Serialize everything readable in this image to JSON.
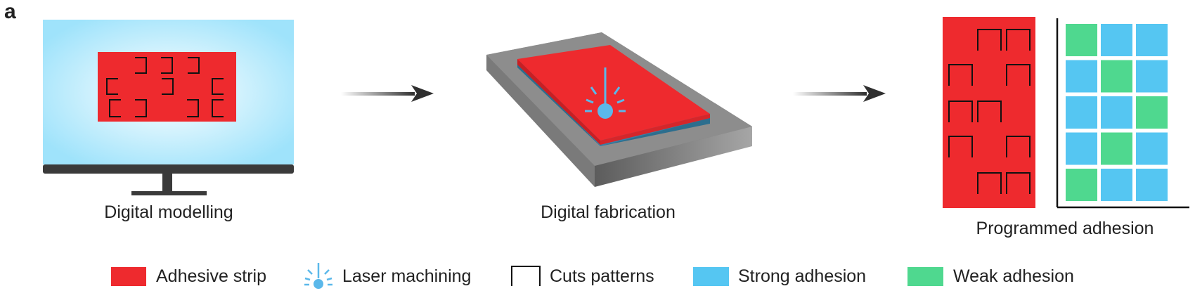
{
  "panel_letter": "a",
  "stages": {
    "modelling": "Digital modelling",
    "fabrication": "Digital fabrication",
    "programmed": "Programmed adhesion"
  },
  "legend": {
    "adhesive_strip": "Adhesive strip",
    "laser_machining": "Laser machining",
    "cuts_patterns": "Cuts patterns",
    "strong_adhesion": "Strong adhesion",
    "weak_adhesion": "Weak adhesion"
  },
  "colors": {
    "adhesive": "#ee2a2e",
    "laser": "#5bb8ea",
    "strong": "#55c6f2",
    "weak": "#4fd88f",
    "screen": "#9fe3fb",
    "frame": "#3a3a3a"
  },
  "adhesion_grid": [
    [
      "weak",
      "strong",
      "strong"
    ],
    [
      "strong",
      "weak",
      "strong"
    ],
    [
      "strong",
      "strong",
      "weak"
    ],
    [
      "strong",
      "weak",
      "strong"
    ],
    [
      "weak",
      "strong",
      "strong"
    ]
  ]
}
